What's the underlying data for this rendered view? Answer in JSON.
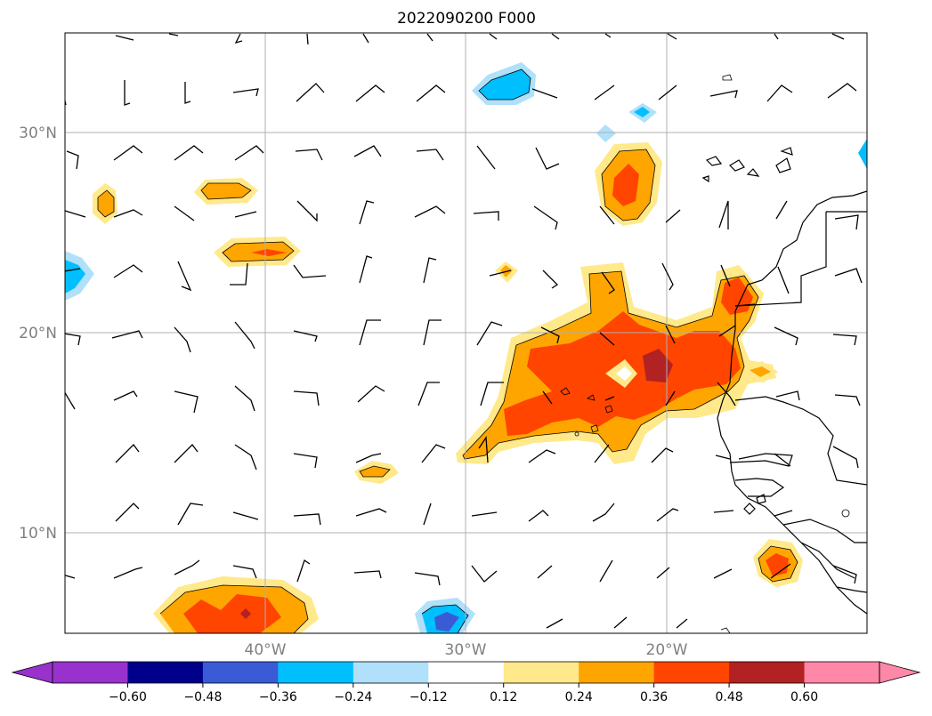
{
  "title": "2022090200 F000",
  "map": {
    "extent": {
      "lon_min": -50,
      "lon_max": -10,
      "lat_min": 5,
      "lat_max": 35
    },
    "lat_labels": [
      {
        "lat": 30,
        "label": "30°N"
      },
      {
        "lat": 20,
        "label": "20°N"
      },
      {
        "lat": 10,
        "label": "10°N"
      }
    ],
    "lon_labels": [
      {
        "lon": -40,
        "label": "40°W"
      },
      {
        "lon": -30,
        "label": "30°W"
      },
      {
        "lon": -20,
        "label": "20°W"
      }
    ],
    "gridlines": true
  },
  "colorbar": {
    "ticks": [
      "−0.60",
      "−0.48",
      "−0.36",
      "−0.24",
      "−0.12",
      "0.12",
      "0.24",
      "0.36",
      "0.48",
      "0.60"
    ],
    "under_color": "#9932cc",
    "over_color": "#ff88a8",
    "colors": [
      "#00008b",
      "#3a5bd6",
      "#00bfff",
      "#b0e0fa",
      "#ffffff",
      "#ffe98a",
      "#ffa500",
      "#ff4500",
      "#b22222"
    ]
  },
  "colors": {
    "level_1": "#ffe98a",
    "level_2": "#ffa500",
    "level_3": "#ff4500",
    "level_4": "#b22222",
    "neg_1": "#b0e0fa",
    "neg_2": "#00bfff",
    "neg_3": "#3a5bd6"
  }
}
